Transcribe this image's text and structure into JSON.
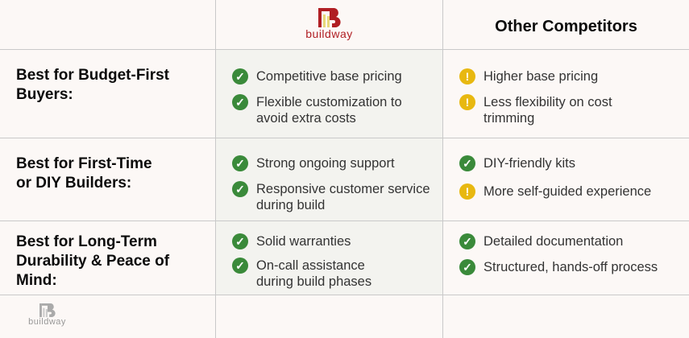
{
  "header": {
    "brand": "buildway",
    "competitor_title": "Other Competitors"
  },
  "rows": [
    {
      "label": "Best for Budget-First Buyers:",
      "buildway": [
        "Competitive base pricing",
        "Flexible customization to avoid extra costs"
      ],
      "competitors": [
        {
          "status": "warning",
          "text": "Higher base pricing"
        },
        {
          "status": "warning",
          "text": "Less flexibility on cost trimming"
        }
      ]
    },
    {
      "label": "Best for First-Time or DIY Builders:",
      "buildway": [
        "Strong ongoing support",
        "Responsive customer service during build"
      ],
      "competitors": [
        {
          "status": "check",
          "text": "DIY-friendly kits"
        },
        {
          "status": "warning",
          "text": "More self-guided experience"
        }
      ]
    },
    {
      "label": "Best for Long-Term Durability & Peace of Mind:",
      "buildway": [
        "Solid warranties",
        "On-call assistance during build phases"
      ],
      "competitors": [
        {
          "status": "check",
          "text": "Detailed documentation"
        },
        {
          "status": "check",
          "text": "Structured, hands-off process"
        }
      ]
    }
  ],
  "footer": {
    "watermark": "buildway"
  },
  "colors": {
    "brand": "#b01e23",
    "check": "#3a8a3a",
    "warning": "#e8b810"
  }
}
